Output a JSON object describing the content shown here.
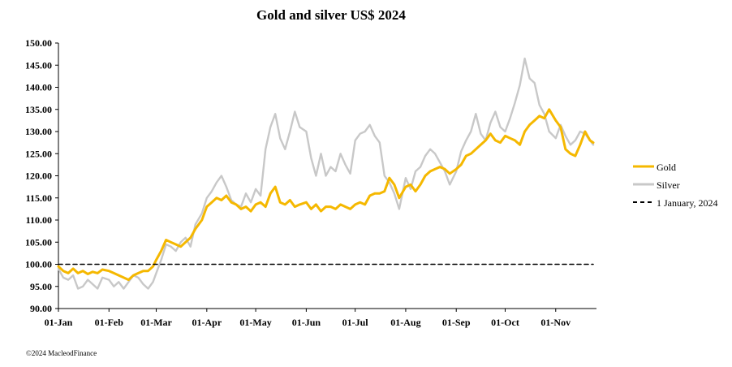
{
  "chart_data": {
    "type": "line",
    "title": "Gold and silver  US$ 2024",
    "xlabel": "",
    "ylabel": "",
    "ylim": [
      90,
      150
    ],
    "yticks": [
      "90.00",
      "95.00",
      "100.00",
      "105.00",
      "110.00",
      "115.00",
      "120.00",
      "125.00",
      "130.00",
      "135.00",
      "140.00",
      "145.00",
      "150.00"
    ],
    "xlim": [
      0,
      330
    ],
    "xticks": [
      {
        "label": "01-Jan",
        "day": 0
      },
      {
        "label": "01-Feb",
        "day": 31
      },
      {
        "label": "01-Mar",
        "day": 60
      },
      {
        "label": "01-Apr",
        "day": 91
      },
      {
        "label": "01-May",
        "day": 121
      },
      {
        "label": "01-Jun",
        "day": 152
      },
      {
        "label": "01-Jul",
        "day": 182
      },
      {
        "label": "01-Aug",
        "day": 213
      },
      {
        "label": "01-Sep",
        "day": 244
      },
      {
        "label": "01-Oct",
        "day": 274
      },
      {
        "label": "01-Nov",
        "day": 305
      }
    ],
    "series": [
      {
        "name": "Gold",
        "color": "#F5B800",
        "style": "solid",
        "x": [
          0,
          3,
          6,
          9,
          12,
          15,
          18,
          21,
          24,
          27,
          31,
          34,
          37,
          40,
          43,
          46,
          49,
          52,
          55,
          58,
          60,
          63,
          66,
          69,
          72,
          75,
          78,
          81,
          84,
          88,
          91,
          94,
          97,
          100,
          103,
          106,
          109,
          112,
          115,
          118,
          121,
          124,
          127,
          130,
          133,
          136,
          139,
          142,
          145,
          148,
          152,
          155,
          158,
          161,
          164,
          167,
          170,
          173,
          176,
          179,
          182,
          185,
          188,
          191,
          194,
          197,
          200,
          203,
          206,
          209,
          213,
          216,
          219,
          222,
          225,
          228,
          231,
          234,
          237,
          240,
          244,
          247,
          250,
          253,
          256,
          259,
          262,
          265,
          268,
          271,
          274,
          277,
          280,
          283,
          286,
          289,
          292,
          295,
          298,
          301,
          305,
          308,
          311,
          314,
          317,
          320,
          323,
          326,
          328
        ],
        "values": [
          99.5,
          98.5,
          98.0,
          99.0,
          98.0,
          98.5,
          97.8,
          98.3,
          98.0,
          98.8,
          98.5,
          98.0,
          97.5,
          97.0,
          96.5,
          97.5,
          98.0,
          98.5,
          98.5,
          99.5,
          101.0,
          103.0,
          105.5,
          105.0,
          104.5,
          104.0,
          105.0,
          106.0,
          108.0,
          110.0,
          113.0,
          114.0,
          115.0,
          114.5,
          115.5,
          114.0,
          113.5,
          112.5,
          113.0,
          112.0,
          113.5,
          114.0,
          113.0,
          116.0,
          117.5,
          114.0,
          113.5,
          114.5,
          113.0,
          113.5,
          114.0,
          112.5,
          113.5,
          112.0,
          113.0,
          113.0,
          112.5,
          113.5,
          113.0,
          112.5,
          113.5,
          114.0,
          113.5,
          115.5,
          116.0,
          116.0,
          116.5,
          119.5,
          118.0,
          115.0,
          117.5,
          118.0,
          116.5,
          118.0,
          120.0,
          121.0,
          121.5,
          122.0,
          121.5,
          120.5,
          121.5,
          122.5,
          124.5,
          125.0,
          126.0,
          127.0,
          128.0,
          129.5,
          128.0,
          127.5,
          129.0,
          128.5,
          128.0,
          127.0,
          130.0,
          131.5,
          132.5,
          133.5,
          133.0,
          135.0,
          132.5,
          131.0,
          126.0,
          125.0,
          124.5,
          127.0,
          130.0,
          128.0,
          127.5
        ]
      },
      {
        "name": "Silver",
        "color": "#C8C8C8",
        "style": "solid",
        "x": [
          0,
          3,
          6,
          9,
          12,
          15,
          18,
          21,
          24,
          27,
          31,
          34,
          37,
          40,
          43,
          46,
          49,
          52,
          55,
          58,
          60,
          63,
          66,
          69,
          72,
          75,
          78,
          81,
          84,
          88,
          91,
          94,
          97,
          100,
          103,
          106,
          109,
          112,
          115,
          118,
          121,
          124,
          127,
          130,
          133,
          136,
          139,
          142,
          145,
          148,
          152,
          155,
          158,
          161,
          164,
          167,
          170,
          173,
          176,
          179,
          182,
          185,
          188,
          191,
          194,
          197,
          200,
          203,
          206,
          209,
          213,
          216,
          219,
          222,
          225,
          228,
          231,
          234,
          237,
          240,
          244,
          247,
          250,
          253,
          256,
          259,
          262,
          265,
          268,
          271,
          274,
          277,
          280,
          283,
          286,
          289,
          292,
          295,
          298,
          301,
          305,
          308,
          311,
          314,
          317,
          320,
          323,
          326,
          328
        ],
        "values": [
          99.0,
          97.0,
          96.5,
          97.5,
          94.5,
          95.0,
          96.5,
          95.5,
          94.5,
          97.0,
          96.5,
          95.0,
          96.0,
          94.5,
          96.0,
          97.5,
          97.0,
          95.5,
          94.5,
          96.0,
          98.0,
          101.0,
          104.5,
          104.0,
          103.0,
          105.0,
          106.0,
          104.0,
          109.0,
          111.5,
          115.0,
          116.5,
          118.5,
          120.0,
          117.5,
          114.5,
          113.5,
          113.0,
          116.0,
          114.0,
          117.0,
          115.5,
          126.0,
          131.0,
          134.0,
          128.5,
          126.0,
          130.0,
          134.5,
          131.0,
          130.0,
          124.0,
          120.0,
          125.0,
          120.0,
          122.0,
          121.0,
          125.0,
          122.5,
          120.5,
          128.0,
          129.5,
          130.0,
          131.5,
          129.0,
          127.5,
          120.0,
          118.5,
          116.0,
          112.5,
          119.5,
          117.0,
          121.0,
          122.0,
          124.5,
          126.0,
          125.0,
          123.0,
          121.0,
          118.0,
          121.0,
          125.5,
          128.0,
          130.0,
          134.0,
          129.5,
          128.0,
          132.0,
          134.5,
          131.0,
          130.0,
          133.0,
          136.5,
          140.5,
          146.5,
          142.0,
          141.0,
          136.0,
          134.0,
          130.0,
          128.5,
          131.5,
          129.0,
          127.0,
          128.0,
          130.0,
          129.5,
          128.0,
          127.0
        ]
      },
      {
        "name": "1 January, 2024",
        "color": "#000000",
        "style": "dashed",
        "x": [
          0,
          328
        ],
        "values": [
          100,
          100
        ]
      }
    ],
    "legend": [
      "Gold",
      "Silver",
      "1 January, 2024"
    ],
    "legend_position": "right",
    "grid": false
  },
  "credit": "©2024 MacleodFinance"
}
